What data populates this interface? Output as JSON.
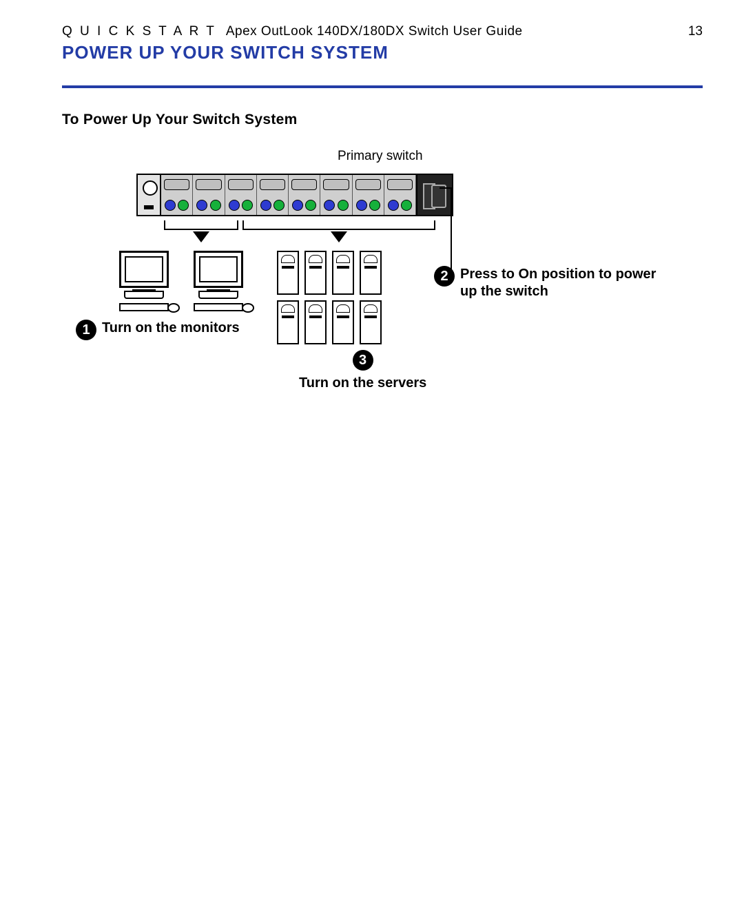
{
  "header": {
    "quick_start": "Q U I C K  S T A R T",
    "guide_title": "Apex OutLook 140DX/180DX Switch User Guide",
    "page_number": "13"
  },
  "section_title": "POWER UP YOUR SWITCH SYSTEM",
  "subheading": "To Power Up Your Switch System",
  "diagram": {
    "primary_switch_label": "Primary switch",
    "port_count": 8,
    "steps": {
      "s1": {
        "num": "1",
        "text": "Turn on the monitors"
      },
      "s2": {
        "num": "2",
        "text": "Press to On position to power up the switch"
      },
      "s3": {
        "num": "3",
        "text": "Turn on the servers"
      }
    }
  },
  "colors": {
    "accent": "#233ca6",
    "ps2_blue": "#2e3bd1",
    "ps2_green": "#16b03b"
  }
}
